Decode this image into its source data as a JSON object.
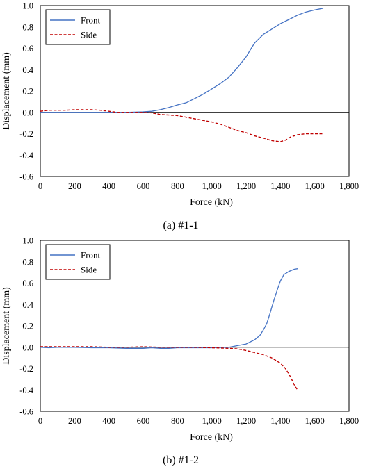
{
  "chart_data": [
    {
      "type": "line",
      "caption": "(a) #1-1",
      "xlabel": "Force (kN)",
      "ylabel": "Displacement (mm)",
      "xlim": [
        0,
        1800
      ],
      "ylim": [
        -0.6,
        1.0
      ],
      "x_ticks": [
        "0",
        "200",
        "400",
        "600",
        "800",
        "1,000",
        "1,200",
        "1,400",
        "1,600",
        "1,800"
      ],
      "y_ticks": [
        "-0.6",
        "-0.4",
        "-0.2",
        "0.0",
        "0.2",
        "0.4",
        "0.6",
        "0.8",
        "1.0"
      ],
      "grid": false,
      "legend": "top-left",
      "series": [
        {
          "name": "Front",
          "color": "#4472c4",
          "dash": "solid",
          "points": [
            [
              0,
              0.0
            ],
            [
              100,
              0.0
            ],
            [
              200,
              0.0
            ],
            [
              300,
              0.0
            ],
            [
              400,
              0.0
            ],
            [
              500,
              0.0
            ],
            [
              600,
              0.005
            ],
            [
              650,
              0.01
            ],
            [
              700,
              0.025
            ],
            [
              750,
              0.045
            ],
            [
              800,
              0.07
            ],
            [
              850,
              0.09
            ],
            [
              900,
              0.13
            ],
            [
              950,
              0.17
            ],
            [
              1000,
              0.22
            ],
            [
              1050,
              0.27
            ],
            [
              1100,
              0.33
            ],
            [
              1150,
              0.42
            ],
            [
              1200,
              0.52
            ],
            [
              1230,
              0.6
            ],
            [
              1250,
              0.65
            ],
            [
              1300,
              0.73
            ],
            [
              1350,
              0.78
            ],
            [
              1400,
              0.83
            ],
            [
              1450,
              0.87
            ],
            [
              1500,
              0.91
            ],
            [
              1550,
              0.94
            ],
            [
              1600,
              0.96
            ],
            [
              1650,
              0.975
            ]
          ]
        },
        {
          "name": "Side",
          "color": "#c00000",
          "dash": "dashed",
          "points": [
            [
              0,
              0.01
            ],
            [
              50,
              0.02
            ],
            [
              100,
              0.02
            ],
            [
              150,
              0.02
            ],
            [
              200,
              0.025
            ],
            [
              250,
              0.025
            ],
            [
              300,
              0.025
            ],
            [
              350,
              0.02
            ],
            [
              400,
              0.01
            ],
            [
              450,
              0.0
            ],
            [
              500,
              0.0
            ],
            [
              550,
              0.0
            ],
            [
              600,
              0.0
            ],
            [
              650,
              -0.005
            ],
            [
              700,
              -0.02
            ],
            [
              750,
              -0.025
            ],
            [
              800,
              -0.03
            ],
            [
              850,
              -0.045
            ],
            [
              900,
              -0.06
            ],
            [
              950,
              -0.075
            ],
            [
              1000,
              -0.09
            ],
            [
              1050,
              -0.11
            ],
            [
              1100,
              -0.14
            ],
            [
              1150,
              -0.17
            ],
            [
              1200,
              -0.19
            ],
            [
              1250,
              -0.22
            ],
            [
              1300,
              -0.24
            ],
            [
              1350,
              -0.265
            ],
            [
              1400,
              -0.275
            ],
            [
              1430,
              -0.26
            ],
            [
              1460,
              -0.23
            ],
            [
              1500,
              -0.21
            ],
            [
              1550,
              -0.2
            ],
            [
              1600,
              -0.2
            ],
            [
              1650,
              -0.2
            ]
          ]
        }
      ]
    },
    {
      "type": "line",
      "caption": "(b) #1-2",
      "xlabel": "Force (kN)",
      "ylabel": "Displacement (mm)",
      "xlim": [
        0,
        1800
      ],
      "ylim": [
        -0.6,
        1.0
      ],
      "x_ticks": [
        "0",
        "200",
        "400",
        "600",
        "800",
        "1,000",
        "1,200",
        "1,400",
        "1,600",
        "1,800"
      ],
      "y_ticks": [
        "-0.6",
        "-0.4",
        "-0.2",
        "0.0",
        "0.2",
        "0.4",
        "0.6",
        "0.8",
        "1.0"
      ],
      "grid": false,
      "legend": "top-left",
      "series": [
        {
          "name": "Front",
          "color": "#4472c4",
          "dash": "solid",
          "points": [
            [
              0,
              0.0
            ],
            [
              50,
              -0.005
            ],
            [
              100,
              0.0
            ],
            [
              200,
              0.0
            ],
            [
              300,
              -0.005
            ],
            [
              400,
              -0.005
            ],
            [
              500,
              -0.01
            ],
            [
              600,
              -0.01
            ],
            [
              650,
              -0.005
            ],
            [
              700,
              -0.01
            ],
            [
              750,
              -0.01
            ],
            [
              800,
              -0.005
            ],
            [
              900,
              -0.005
            ],
            [
              1000,
              -0.005
            ],
            [
              1100,
              0.0
            ],
            [
              1150,
              0.015
            ],
            [
              1200,
              0.03
            ],
            [
              1250,
              0.07
            ],
            [
              1280,
              0.11
            ],
            [
              1300,
              0.16
            ],
            [
              1320,
              0.22
            ],
            [
              1340,
              0.32
            ],
            [
              1360,
              0.43
            ],
            [
              1380,
              0.53
            ],
            [
              1400,
              0.62
            ],
            [
              1420,
              0.68
            ],
            [
              1450,
              0.71
            ],
            [
              1480,
              0.73
            ],
            [
              1500,
              0.735
            ]
          ]
        },
        {
          "name": "Side",
          "color": "#c00000",
          "dash": "dashed",
          "points": [
            [
              0,
              0.005
            ],
            [
              50,
              0.005
            ],
            [
              100,
              0.005
            ],
            [
              200,
              0.005
            ],
            [
              300,
              0.005
            ],
            [
              400,
              0.0
            ],
            [
              500,
              0.0
            ],
            [
              600,
              0.005
            ],
            [
              700,
              0.0
            ],
            [
              800,
              0.0
            ],
            [
              900,
              0.0
            ],
            [
              1000,
              -0.005
            ],
            [
              1100,
              -0.01
            ],
            [
              1150,
              -0.015
            ],
            [
              1200,
              -0.03
            ],
            [
              1250,
              -0.05
            ],
            [
              1300,
              -0.07
            ],
            [
              1350,
              -0.1
            ],
            [
              1400,
              -0.15
            ],
            [
              1430,
              -0.2
            ],
            [
              1460,
              -0.28
            ],
            [
              1480,
              -0.35
            ],
            [
              1500,
              -0.4
            ]
          ]
        }
      ]
    }
  ]
}
